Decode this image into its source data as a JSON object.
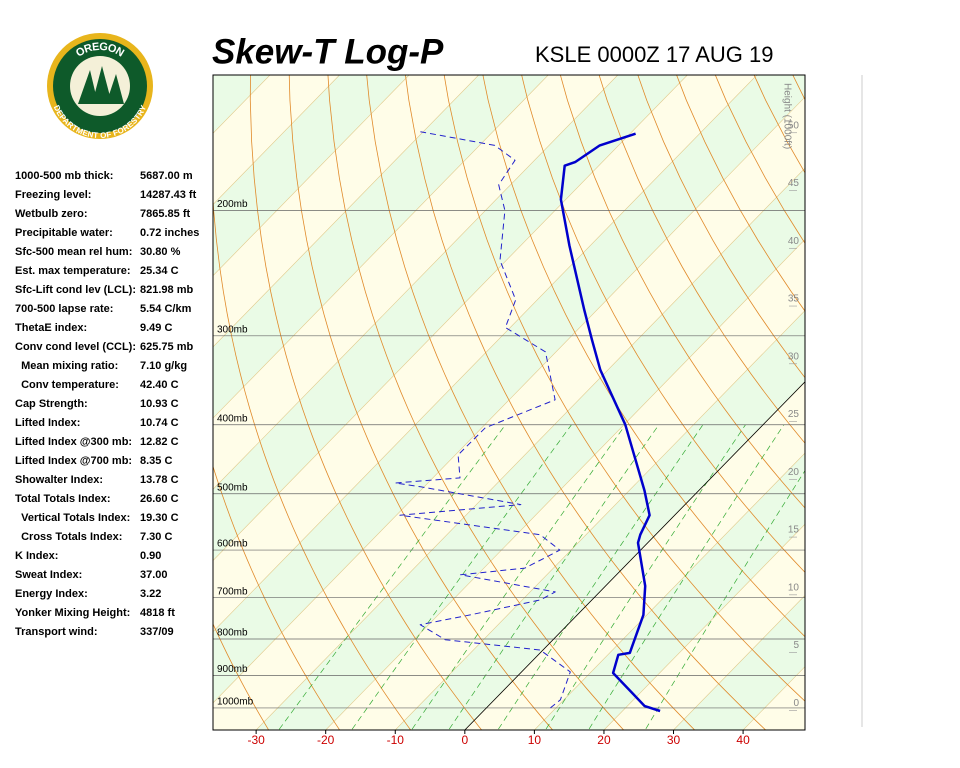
{
  "logo": {
    "top": "OREGON",
    "bottom": "DEPARTMENT OF FORESTRY"
  },
  "chart_data": {
    "type": "skew-t",
    "title": "Skew-T Log-P",
    "subtitle": "KSLE 0000Z 17 AUG 19",
    "y2_label": "Height (1000ft)",
    "xlim": [
      -36.2,
      48.9
    ],
    "xticks": [
      -30,
      -20,
      -10,
      0,
      10,
      20,
      30,
      40
    ],
    "xtick_color": "#cc0000",
    "ylim": [
      1074,
      129
    ],
    "yscale": "log",
    "yticks": [
      {
        "value": 1000,
        "label": "1000mb"
      },
      {
        "value": 900,
        "label": "900mb"
      },
      {
        "value": 800,
        "label": "800mb"
      },
      {
        "value": 700,
        "label": "700mb"
      },
      {
        "value": 600,
        "label": "600mb"
      },
      {
        "value": 500,
        "label": "500mb"
      },
      {
        "value": 400,
        "label": "400mb"
      },
      {
        "value": 300,
        "label": "300mb"
      },
      {
        "value": 200,
        "label": "200mb"
      }
    ],
    "y2lim": [
      -1.7,
      55
    ],
    "y2ticks": [
      0,
      5,
      10,
      15,
      20,
      25,
      30,
      35,
      40,
      45,
      50
    ],
    "series": [
      {
        "color": "#0000cc",
        "style": "solid",
        "pressure": [
          1010,
          994,
          893,
          842,
          837,
          740,
          674,
          586,
          571,
          536,
          495,
          400,
          335,
          304,
          276,
          224,
          193,
          173,
          171,
          162,
          156
        ],
        "values": [
          25.4,
          22.5,
          13.3,
          11.5,
          12.9,
          9.5,
          5.7,
          -1.4,
          -2.2,
          -3.6,
          -7.8,
          -19.8,
          -31.1,
          -36.5,
          -41.8,
          -53.0,
          -60.7,
          -64.9,
          -63.9,
          -62.7,
          -59.2
        ]
      },
      {
        "color": "#2222cc",
        "style": "dashed",
        "pressure": [
          1000,
          974,
          890,
          829,
          802,
          764,
          740,
          705,
          687,
          650,
          636,
          600,
          571,
          536,
          518,
          489,
          483,
          475,
          441,
          404,
          369,
          316,
          292,
          267,
          235,
          200,
          184,
          170,
          162,
          155
        ],
        "values": [
          9.2,
          9.5,
          7.0,
          -0.4,
          -15.5,
          -21.2,
          -15.4,
          -7.4,
          -6.4,
          -22.4,
          -14.1,
          -11.6,
          -16.6,
          -39.5,
          -23.6,
          -40.5,
          -44.7,
          -36.1,
          -39.6,
          -39.5,
          -33.4,
          -41.5,
          -50.7,
          -53.1,
          -60.9,
          -67.2,
          -71.7,
          -72.8,
          -77.8,
          -90.4
        ]
      }
    ]
  },
  "indices": [
    [
      "1000-500 mb thick:",
      "5687.00 m"
    ],
    [
      "Freezing level:",
      "14287.43 ft"
    ],
    [
      "Wetbulb zero:",
      "7865.85 ft"
    ],
    [
      "Precipitable water:",
      "0.72 inches"
    ],
    [
      "Sfc-500 mean rel hum:",
      "30.80 %"
    ],
    [
      "Est. max temperature:",
      "25.34 C"
    ],
    [
      "Sfc-Lift cond lev (LCL):",
      "821.98 mb"
    ],
    [
      "700-500 lapse rate:",
      "5.54 C/km"
    ],
    [
      "ThetaE index:",
      "9.49 C"
    ],
    [
      "Conv cond level (CCL):",
      "625.75 mb"
    ],
    [
      "  Mean mixing ratio:",
      "7.10 g/kg"
    ],
    [
      "  Conv temperature:",
      "42.40 C"
    ],
    [
      "Cap Strength:",
      "10.93 C"
    ],
    [
      "Lifted Index:",
      "10.74 C"
    ],
    [
      "Lifted Index @300 mb:",
      "12.82 C"
    ],
    [
      "Lifted Index @700 mb:",
      "8.35 C"
    ],
    [
      "Showalter Index:",
      "13.78 C"
    ],
    [
      "Total Totals Index:",
      "26.60 C"
    ],
    [
      "  Vertical Totals Index:",
      "19.30 C"
    ],
    [
      "  Cross Totals Index:",
      "7.30 C"
    ],
    [
      "K Index:",
      "0.90"
    ],
    [
      "Sweat Index:",
      "37.00"
    ],
    [
      "Energy Index:",
      "3.22"
    ],
    [
      "Yonker Mixing Height:",
      "4818 ft"
    ],
    [
      "Transport wind:",
      "337/09"
    ]
  ]
}
